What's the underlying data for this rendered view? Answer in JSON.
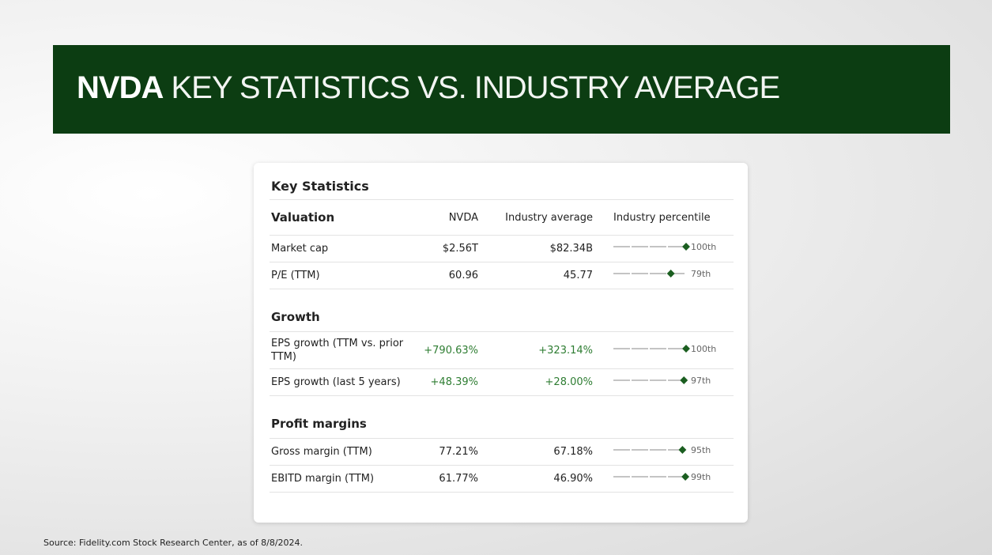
{
  "header": {
    "ticker": "NVDA",
    "title": "KEY STATISTICS VS. INDUSTRY AVERAGE"
  },
  "table": {
    "title": "Key Statistics",
    "columns": [
      "NVDA",
      "Industry average",
      "Industry percentile"
    ],
    "sections": [
      {
        "name": "Valuation",
        "rows": [
          {
            "metric": "Market cap",
            "nvda": "$2.56T",
            "industry": "$82.34B",
            "percentile": {
              "value": 100,
              "label": "100th"
            }
          },
          {
            "metric": "P/E (TTM)",
            "nvda": "60.96",
            "industry": "45.77",
            "percentile": {
              "value": 79,
              "label": "79th"
            }
          }
        ]
      },
      {
        "name": "Growth",
        "rows": [
          {
            "metric": "EPS growth (TTM vs. prior TTM)",
            "nvda": "+790.63%",
            "industry": "+323.14%",
            "percentile": {
              "value": 100,
              "label": "100th"
            }
          },
          {
            "metric": "EPS growth (last 5 years)",
            "nvda": "+48.39%",
            "industry": "+28.00%",
            "percentile": {
              "value": 97,
              "label": "97th"
            }
          }
        ]
      },
      {
        "name": "Profit margins",
        "rows": [
          {
            "metric": "Gross margin (TTM)",
            "nvda": "77.21%",
            "industry": "67.18%",
            "percentile": {
              "value": 95,
              "label": "95th"
            }
          },
          {
            "metric": "EBITD margin (TTM)",
            "nvda": "61.77%",
            "industry": "46.90%",
            "percentile": {
              "value": 99,
              "label": "99th"
            }
          }
        ]
      }
    ]
  },
  "source": "Source: Fidelity.com Stock Research Center,  as of 8/8/2024."
}
